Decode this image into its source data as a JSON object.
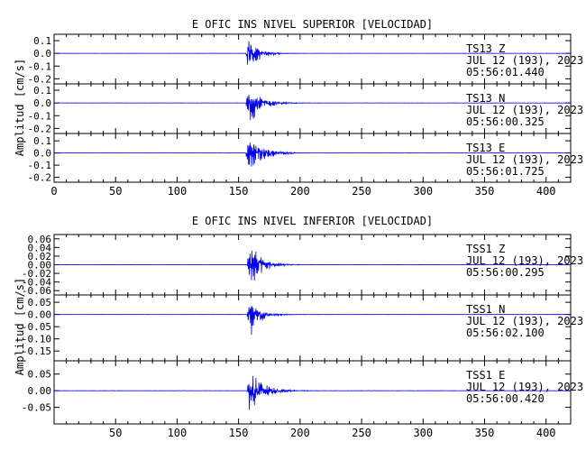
{
  "chart_data": [
    {
      "type": "line",
      "title": "E OFIC INS NIVEL SUPERIOR [VELOCIDAD]",
      "ylabel": "Amplitud [cm/s]",
      "xlabel": "",
      "xlim": [
        0,
        420
      ],
      "x_ticks": [
        0,
        50,
        100,
        150,
        200,
        250,
        300,
        350,
        400
      ],
      "grid": false,
      "traces": [
        {
          "station": "TS13",
          "component": "Z",
          "date": "JUL 12 (193), 2023",
          "time": "05:56:01.440",
          "ylim": [
            -0.24,
            0.15
          ],
          "y_ticks": [
            0.1,
            0.0,
            -0.1,
            -0.2
          ],
          "y_tick_labels": [
            "0.1",
            "0.0",
            "-0.1",
            "-0.2"
          ],
          "onset_s": 156,
          "peak_pos": 0.15,
          "peak_neg": -0.22,
          "decay_s": 8
        },
        {
          "station": "TS13",
          "component": "N",
          "date": "JUL 12 (193), 2023",
          "time": "05:56:00.325",
          "ylim": [
            -0.24,
            0.15
          ],
          "y_ticks": [
            0.1,
            0.0,
            -0.1,
            -0.2
          ],
          "y_tick_labels": [
            "0.1",
            "0.0",
            "-0.1",
            "-0.2"
          ],
          "onset_s": 156,
          "peak_pos": 0.14,
          "peak_neg": -0.22,
          "decay_s": 10
        },
        {
          "station": "TS13",
          "component": "E",
          "date": "JUL 12 (193), 2023",
          "time": "05:56:01.725",
          "ylim": [
            -0.24,
            0.16
          ],
          "y_ticks": [
            0.1,
            0.0,
            -0.1,
            -0.2
          ],
          "y_tick_labels": [
            "0.1",
            "0.0",
            "-0.1",
            "-0.2"
          ],
          "onset_s": 156,
          "peak_pos": 0.15,
          "peak_neg": -0.2,
          "decay_s": 11
        }
      ]
    },
    {
      "type": "line",
      "title": "E OFIC INS NIVEL INFERIOR [VELOCIDAD]",
      "ylabel": "Amplitud [cm/s]",
      "xlabel": "",
      "xlim": [
        0,
        420
      ],
      "x_ticks": [
        50,
        100,
        150,
        200,
        250,
        300,
        350,
        400
      ],
      "grid": false,
      "traces": [
        {
          "station": "TSS1",
          "component": "Z",
          "date": "JUL 12 (193), 2023",
          "time": "05:56:00.295",
          "ylim": [
            -0.07,
            0.07
          ],
          "y_ticks": [
            0.06,
            0.04,
            0.02,
            0.0,
            -0.02,
            -0.04,
            -0.06
          ],
          "y_tick_labels": [
            "0.06",
            "0.04",
            "0.02",
            "0.00",
            "-0.02",
            "-0.04",
            "-0.06"
          ],
          "onset_s": 157,
          "peak_pos": 0.065,
          "peak_neg": -0.068,
          "decay_s": 9
        },
        {
          "station": "TSS1",
          "component": "N",
          "date": "JUL 12 (193), 2023",
          "time": "05:56:02.100",
          "ylim": [
            -0.19,
            0.08
          ],
          "y_ticks": [
            0.05,
            0.0,
            -0.05,
            -0.1,
            -0.15
          ],
          "y_tick_labels": [
            "0.05",
            "0.00",
            "-0.05",
            "-0.10",
            "-0.15"
          ],
          "onset_s": 157,
          "peak_pos": 0.06,
          "peak_neg": -0.17,
          "decay_s": 8
        },
        {
          "station": "TSS1",
          "component": "E",
          "date": "JUL 12 (193), 2023",
          "time": "05:56:00.420",
          "ylim": [
            -0.1,
            0.09
          ],
          "y_ticks": [
            0.05,
            0.0,
            -0.05
          ],
          "y_tick_labels": [
            "0.05",
            "0.00",
            "-0.05"
          ],
          "onset_s": 157,
          "peak_pos": 0.08,
          "peak_neg": -0.09,
          "decay_s": 10
        }
      ]
    }
  ],
  "colors": {
    "trace": "#0000ff",
    "axes": "#000000",
    "text": "#000000"
  }
}
